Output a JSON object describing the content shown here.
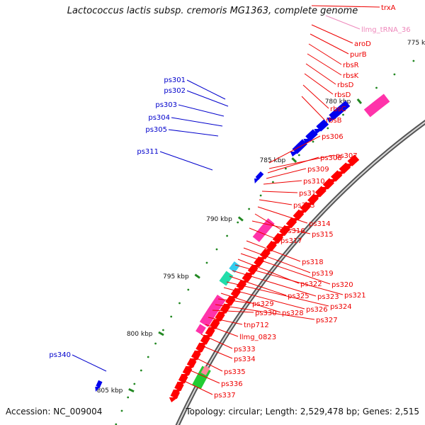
{
  "title": "Lactococcus lactis subsp. cremoris MG1363, complete genome",
  "accession": "Accession: NC_009004",
  "topology": "Topology: circular; Length: 2,529,478 bp; Genes: 2,515",
  "colors": {
    "backbone": "#7a7a7a",
    "gene": "#ff0000",
    "rRNA": "#ff33aa",
    "tRNA_label": "#ee88bb",
    "cyan": "#00bbcc",
    "cyan_light": "#33ccee",
    "orange": "#ff8800",
    "green": "#22cc33",
    "mint": "#22ddaa",
    "blue": "#0000ee",
    "ruler": "#228822",
    "label_red": "#ee0000",
    "label_blue": "#0000cc"
  },
  "ruler_labels": [
    "775 kbp",
    "780 kbp",
    "785 kbp",
    "790 kbp",
    "795 kbp",
    "800 kbp",
    "805 kbp"
  ],
  "right_labels": [
    "trxA",
    "llmg_tRNA_36",
    "aroD",
    "purB",
    "rbsR",
    "rbsK",
    "rbsD",
    "rbsD",
    "rbsC",
    "rbsB",
    "ps306",
    "ps307",
    "ps308",
    "ps309",
    "ps310",
    "ps312",
    "ps313",
    "ps314",
    "ps316",
    "ps315",
    "ps317",
    "ps318",
    "ps319",
    "ps320",
    "ps322",
    "ps321",
    "ps323",
    "ps325",
    "ps324",
    "ps326",
    "ps328",
    "ps329",
    "ps327",
    "ps330",
    "tnp712",
    "llmg_0823",
    "ps333",
    "ps334",
    "ps335",
    "ps336",
    "ps337"
  ],
  "left_labels": [
    "ps301",
    "ps302",
    "ps303",
    "ps304",
    "ps305",
    "ps311",
    "ps340"
  ]
}
